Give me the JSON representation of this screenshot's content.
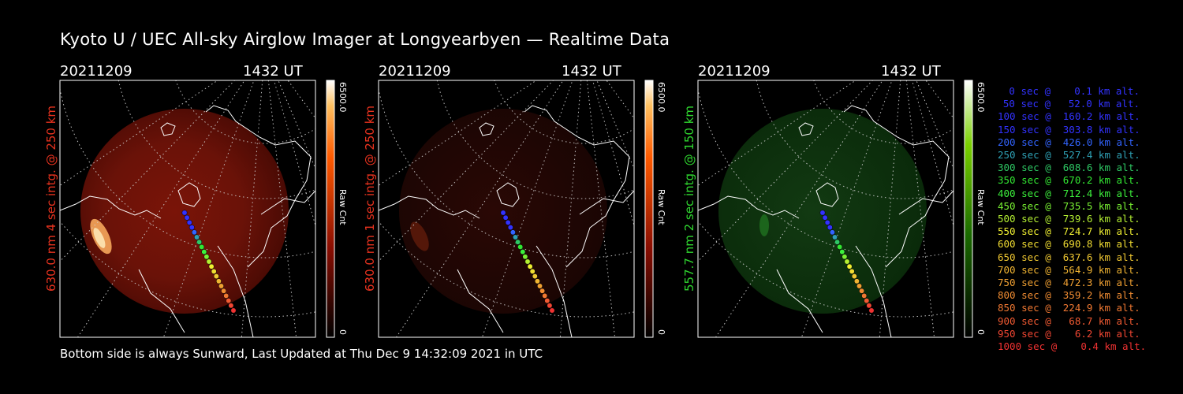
{
  "title": "Kyoto U / UEC All-sky Airglow Imager at Longyearbyen — Realtime Data",
  "panels": [
    {
      "date": "20211209",
      "time": "1432 UT",
      "label": "630.0 nm 4 sec intg. @ 250 km",
      "label_color": "#e8321e",
      "cbar_max": "6500.0",
      "cbar_min": "0",
      "cbar_unit": "Raw Cnt",
      "scheme": "red"
    },
    {
      "date": "20211209",
      "time": "1432 UT",
      "label": "630.0 nm 1 sec intg. @ 250 km",
      "label_color": "#e8321e",
      "cbar_max": "6500.0",
      "cbar_min": "0",
      "cbar_unit": "Raw Cnt",
      "scheme": "dimred"
    },
    {
      "date": "20211209",
      "time": "1432 UT",
      "label": "557.7 nm 2 sec intg. @ 150 km",
      "label_color": "#2fd72f",
      "cbar_max": "6500.0",
      "cbar_min": "0",
      "cbar_unit": "Raw Cnt",
      "scheme": "green"
    }
  ],
  "legend": [
    {
      "text": "0 sec @    0.1 km alt.",
      "color": "#3232ff"
    },
    {
      "text": "50 sec @   52.0 km alt.",
      "color": "#3232ff"
    },
    {
      "text": "100 sec @  160.2 km alt.",
      "color": "#3232ff"
    },
    {
      "text": "150 sec @  303.8 km alt.",
      "color": "#3232ff"
    },
    {
      "text": "200 sec @  426.0 km alt.",
      "color": "#3264ff"
    },
    {
      "text": "250 sec @  527.4 km alt.",
      "color": "#2ea0b4"
    },
    {
      "text": "300 sec @  608.6 km alt.",
      "color": "#2ec864"
    },
    {
      "text": "350 sec @  670.2 km alt.",
      "color": "#32e632"
    },
    {
      "text": "400 sec @  712.4 km alt.",
      "color": "#3cf03c"
    },
    {
      "text": "450 sec @  735.5 km alt.",
      "color": "#78f032"
    },
    {
      "text": "500 sec @  739.6 km alt.",
      "color": "#b4f032"
    },
    {
      "text": "550 sec @  724.7 km alt.",
      "color": "#f0f032"
    },
    {
      "text": "600 sec @  690.8 km alt.",
      "color": "#f0dc32"
    },
    {
      "text": "650 sec @  637.6 km alt.",
      "color": "#f0c832"
    },
    {
      "text": "700 sec @  564.9 km alt.",
      "color": "#f0b432"
    },
    {
      "text": "750 sec @  472.3 km alt.",
      "color": "#f0a032"
    },
    {
      "text": "800 sec @  359.2 km alt.",
      "color": "#f08c32"
    },
    {
      "text": "850 sec @  224.9 km alt.",
      "color": "#f07832"
    },
    {
      "text": "900 sec @   68.7 km alt.",
      "color": "#f05a32"
    },
    {
      "text": "950 sec @    6.2 km alt.",
      "color": "#f04632"
    },
    {
      "text": "1000 sec @    0.4 km alt.",
      "color": "#f03232"
    }
  ],
  "footer": "Bottom side is always Sunward, Last Updated at Thu Dec  9 14:32:09 2021 in UTC"
}
